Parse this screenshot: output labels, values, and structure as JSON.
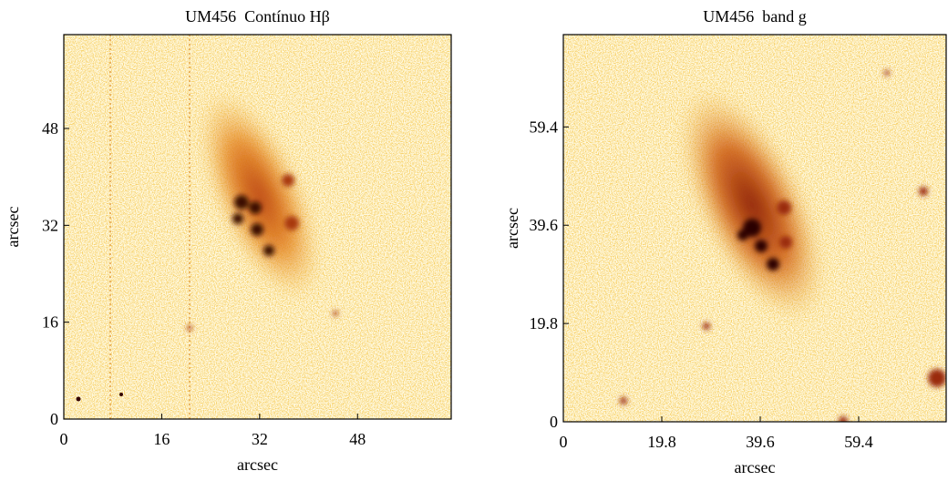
{
  "chart_data": [
    {
      "type": "image",
      "title": "UM456  Contínuo Hβ",
      "xlabel": "arcsec",
      "ylabel": "arcsec",
      "xlim": [
        0,
        63.3
      ],
      "ylim": [
        0,
        63.5
      ],
      "xticks": [
        0,
        16,
        32,
        48
      ],
      "yticks": [
        0,
        16,
        32,
        48
      ]
    },
    {
      "type": "image",
      "title": "UM456  band g",
      "xlabel": "arcsec",
      "ylabel": "arcsec",
      "xlim": [
        0,
        77
      ],
      "ylim": [
        0,
        78
      ],
      "xticks": [
        0,
        19.8,
        39.6,
        59.4
      ],
      "yticks": [
        0,
        19.8,
        39.6,
        59.4
      ]
    }
  ]
}
